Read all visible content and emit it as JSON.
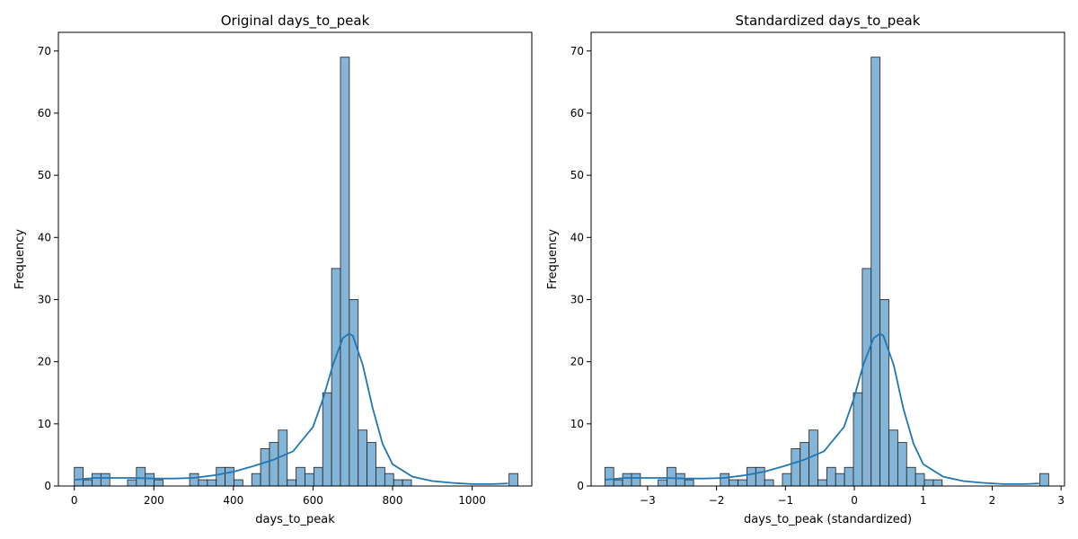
{
  "chart_data": [
    {
      "type": "histogram",
      "title": "Original days_to_peak",
      "xlabel": "days_to_peak",
      "ylabel": "Frequency",
      "xlim": [
        -40,
        1150
      ],
      "ylim": [
        0,
        73
      ],
      "xticks": [
        0,
        200,
        400,
        600,
        800,
        1000
      ],
      "yticks": [
        0,
        10,
        20,
        30,
        40,
        50,
        60,
        70
      ],
      "bin_start": 0,
      "bin_width": 22.3,
      "counts": [
        3,
        1,
        2,
        2,
        0,
        0,
        1,
        3,
        2,
        1,
        0,
        0,
        0,
        2,
        1,
        1,
        3,
        3,
        1,
        0,
        2,
        6,
        7,
        9,
        1,
        3,
        2,
        3,
        15,
        35,
        69,
        30,
        9,
        7,
        3,
        2,
        1,
        1,
        0,
        0,
        0,
        0,
        0,
        0,
        0,
        0,
        0,
        0,
        0,
        2
      ],
      "kde": {
        "x": [
          0,
          50,
          100,
          150,
          200,
          250,
          300,
          350,
          400,
          450,
          500,
          550,
          600,
          625,
          650,
          675,
          690,
          700,
          725,
          750,
          775,
          800,
          850,
          900,
          950,
          1000,
          1050,
          1090
        ],
        "y": [
          1,
          1.3,
          1.3,
          1.3,
          1.2,
          1.2,
          1.3,
          1.7,
          2.3,
          3.2,
          4.2,
          5.6,
          9.5,
          14,
          19.5,
          23.8,
          24.5,
          24.2,
          19.5,
          12.5,
          6.8,
          3.5,
          1.5,
          0.8,
          0.5,
          0.3,
          0.3,
          0.4
        ]
      }
    },
    {
      "type": "histogram",
      "title": "Standardized days_to_peak",
      "xlabel": "days_to_peak (standardized)",
      "ylabel": "Frequency",
      "xlim": [
        -3.82,
        3.05
      ],
      "ylim": [
        0,
        73
      ],
      "xticks": [
        -3,
        -2,
        -1,
        0,
        1,
        2,
        3
      ],
      "xtick_labels": [
        "−3",
        "−2",
        "−1",
        "0",
        "1",
        "2",
        "3"
      ],
      "yticks": [
        0,
        10,
        20,
        30,
        40,
        50,
        60,
        70
      ],
      "bin_start": -3.62,
      "bin_width": 0.1288,
      "counts": [
        3,
        1,
        2,
        2,
        0,
        0,
        1,
        3,
        2,
        1,
        0,
        0,
        0,
        2,
        1,
        1,
        3,
        3,
        1,
        0,
        2,
        6,
        7,
        9,
        1,
        3,
        2,
        3,
        15,
        35,
        69,
        30,
        9,
        7,
        3,
        2,
        1,
        1,
        0,
        0,
        0,
        0,
        0,
        0,
        0,
        0,
        0,
        0,
        0,
        2
      ],
      "kde": {
        "x": [
          -3.62,
          -3.33,
          -3.04,
          -2.75,
          -2.46,
          -2.18,
          -1.89,
          -1.6,
          -1.31,
          -1.02,
          -0.73,
          -0.44,
          -0.15,
          -0.01,
          0.13,
          0.28,
          0.37,
          0.42,
          0.57,
          0.71,
          0.86,
          1.0,
          1.29,
          1.58,
          1.87,
          2.16,
          2.45,
          2.68
        ],
        "y": [
          1,
          1.3,
          1.3,
          1.3,
          1.2,
          1.2,
          1.3,
          1.7,
          2.3,
          3.2,
          4.2,
          5.6,
          9.5,
          14,
          19.5,
          23.8,
          24.5,
          24.2,
          19.5,
          12.5,
          6.8,
          3.5,
          1.5,
          0.8,
          0.5,
          0.3,
          0.3,
          0.4
        ]
      }
    }
  ]
}
